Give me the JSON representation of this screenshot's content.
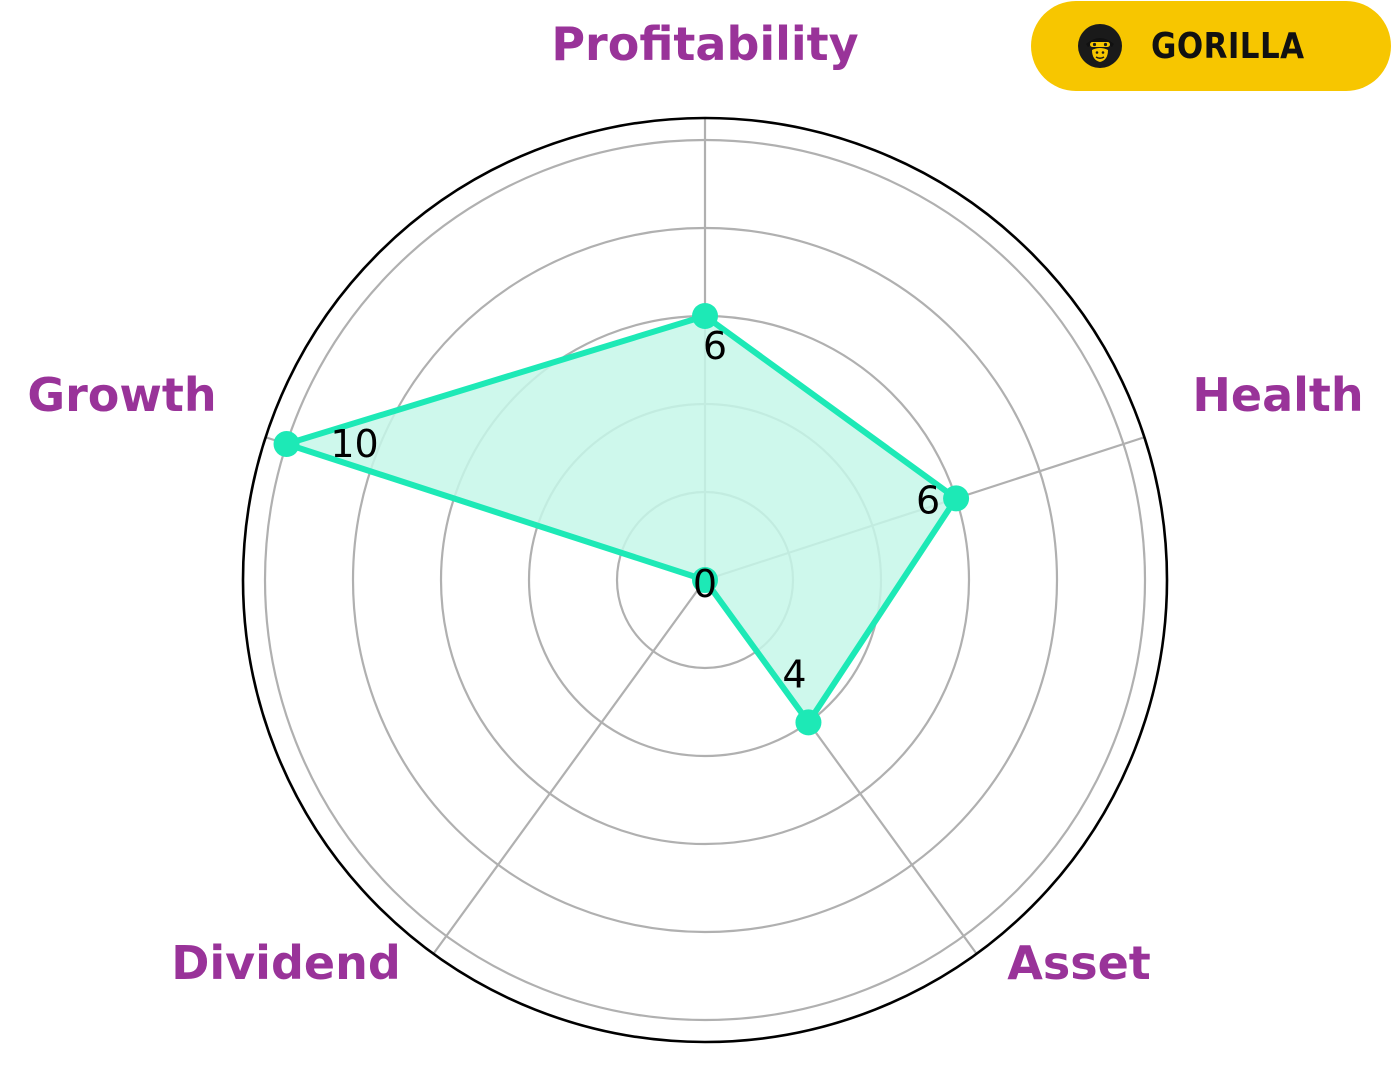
{
  "brand": {
    "name": "GORILLA",
    "icon": "gorilla-face-icon",
    "badge_color": "#f7c600"
  },
  "colors": {
    "series_line": "#1de9b6",
    "series_fill": "#c6f7e9",
    "grid": "#b0b0b0",
    "outer_ring": "#000000",
    "axis_label": "#993399",
    "value_label": "#000000"
  },
  "chart_data": {
    "type": "radar",
    "title": "",
    "axes": [
      "Profitability",
      "Health",
      "Asset",
      "Dividend",
      "Growth"
    ],
    "values": [
      6,
      6,
      4,
      0,
      10
    ],
    "value_labels": [
      "6",
      "6",
      "4",
      "0",
      "10"
    ],
    "rlim": [
      0,
      10.5
    ],
    "rings": [
      2,
      4,
      6,
      8,
      10
    ],
    "grid": true,
    "tick_labels_shown": false,
    "legend": "none"
  }
}
